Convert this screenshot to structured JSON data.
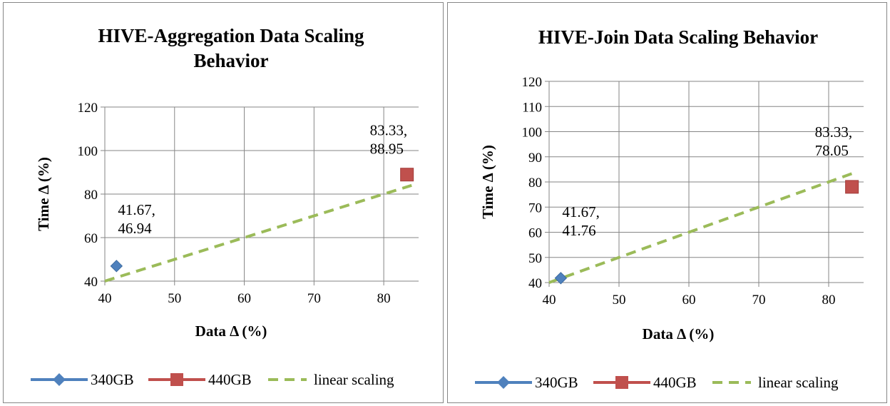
{
  "colors": {
    "series_340": "#4f81bd",
    "series_440": "#c0504d",
    "linear": "#9bbb59",
    "grid": "#868686",
    "border": "#868686"
  },
  "chart_data": [
    {
      "type": "scatter",
      "title_lines": [
        "HIVE-Aggregation Data Scaling",
        "Behavior"
      ],
      "xlabel": "Data Δ (%)",
      "ylabel": "Time Δ (%)",
      "xlim": [
        40,
        85
      ],
      "ylim": [
        40,
        120
      ],
      "x_ticks": [
        "40",
        "50",
        "60",
        "70",
        "80"
      ],
      "y_ticks": [
        "40",
        "60",
        "80",
        "100",
        "120"
      ],
      "grid": true,
      "legend_position": "bottom",
      "series": [
        {
          "name": "340GB",
          "marker": "diamond",
          "x": [
            41.67
          ],
          "y": [
            46.94
          ],
          "labels": [
            [
              "41.67,",
              "46.94"
            ]
          ]
        },
        {
          "name": "440GB",
          "marker": "square",
          "x": [
            83.33
          ],
          "y": [
            88.95
          ],
          "labels": [
            [
              "83.33,",
              "88.95"
            ]
          ]
        },
        {
          "name": "linear scaling",
          "style": "dashed-line",
          "x": [
            40,
            84
          ],
          "y": [
            40,
            84
          ]
        }
      ]
    },
    {
      "type": "scatter",
      "title_lines": [
        "HIVE-Join Data Scaling Behavior"
      ],
      "xlabel": "Data Δ (%)",
      "ylabel": "Time Δ (%)",
      "xlim": [
        40,
        85
      ],
      "ylim": [
        40,
        120
      ],
      "x_ticks": [
        "40",
        "50",
        "60",
        "70",
        "80"
      ],
      "y_ticks": [
        "40",
        "50",
        "60",
        "70",
        "80",
        "90",
        "100",
        "110",
        "120"
      ],
      "grid": true,
      "legend_position": "bottom",
      "series": [
        {
          "name": "340GB",
          "marker": "diamond",
          "x": [
            41.67
          ],
          "y": [
            41.76
          ],
          "labels": [
            [
              "41.67,",
              "41.76"
            ]
          ]
        },
        {
          "name": "440GB",
          "marker": "square",
          "x": [
            83.33
          ],
          "y": [
            78.05
          ],
          "labels": [
            [
              "83.33,",
              "78.05"
            ]
          ]
        },
        {
          "name": "linear scaling",
          "style": "dashed-line",
          "x": [
            40,
            84
          ],
          "y": [
            40,
            84
          ]
        }
      ]
    }
  ]
}
